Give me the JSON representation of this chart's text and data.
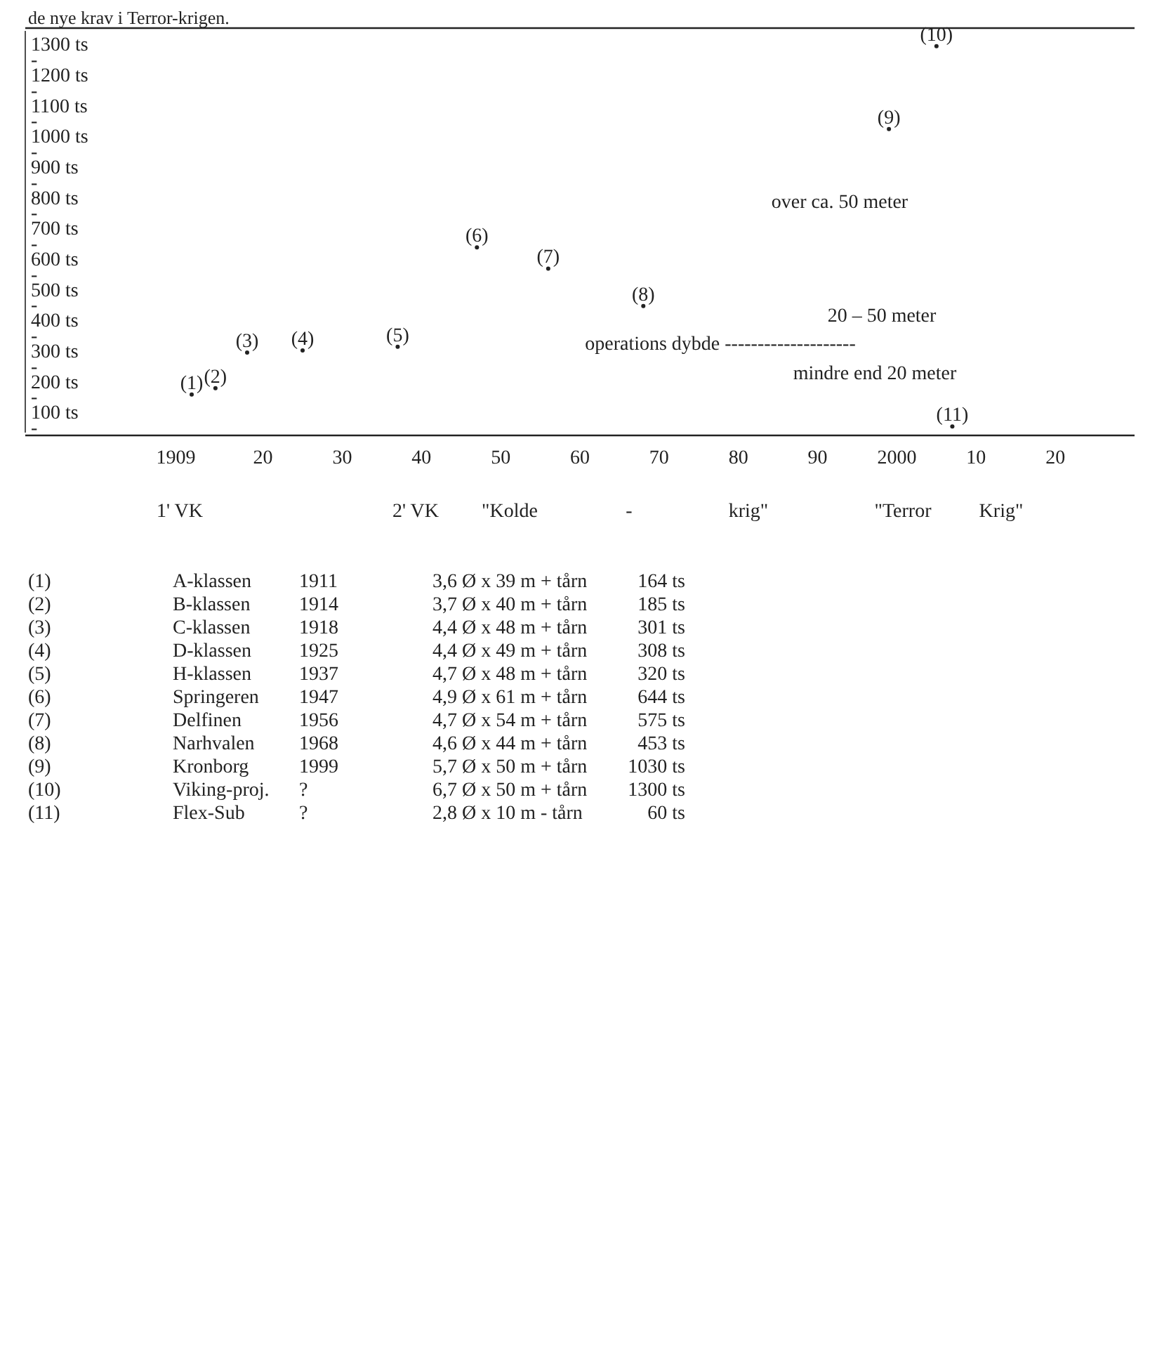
{
  "chart_data": {
    "type": "scatter",
    "title": "de nye krav i Terror-krigen.",
    "series": [
      {
        "name": "(1)",
        "x": [
          1911
        ],
        "values": [
          164
        ],
        "color": "#222222"
      },
      {
        "name": "(2)",
        "x": [
          1914
        ],
        "values": [
          185
        ],
        "color": "#222222"
      },
      {
        "name": "(3)",
        "x": [
          1918
        ],
        "values": [
          301
        ],
        "color": "#222222"
      },
      {
        "name": "(4)",
        "x": [
          1925
        ],
        "values": [
          308
        ],
        "color": "#222222"
      },
      {
        "name": "(5)",
        "x": [
          1937
        ],
        "values": [
          320
        ],
        "color": "#222222"
      },
      {
        "name": "(6)",
        "x": [
          1947
        ],
        "values": [
          644
        ],
        "color": "#222222"
      },
      {
        "name": "(7)",
        "x": [
          1956
        ],
        "values": [
          575
        ],
        "color": "#222222"
      },
      {
        "name": "(8)",
        "x": [
          1968
        ],
        "values": [
          453
        ],
        "color": "#222222"
      },
      {
        "name": "(9)",
        "x": [
          1999
        ],
        "values": [
          1030
        ],
        "color": "#222222"
      },
      {
        "name": "(10)",
        "x": [
          2005
        ],
        "values": [
          1300
        ],
        "color": "#222222"
      },
      {
        "name": "(11)",
        "x": [
          2007
        ],
        "values": [
          60
        ],
        "color": "#222222"
      }
    ],
    "marker": "circle",
    "xlim": [
      1890,
      2030
    ],
    "xticks": [
      1909,
      {
        "value": 1920,
        "label": "20"
      },
      {
        "value": 1930,
        "label": "30"
      },
      {
        "value": 1940,
        "label": "40"
      },
      {
        "value": 1950,
        "label": "50"
      },
      {
        "value": 1960,
        "label": "60"
      },
      {
        "value": 1970,
        "label": "70"
      },
      {
        "value": 1980,
        "label": "80"
      },
      {
        "value": 1990,
        "label": "90"
      },
      2000,
      {
        "value": 2010,
        "label": "10"
      },
      {
        "value": 2020,
        "label": "20"
      }
    ],
    "ylim": [
      40,
      1350
    ],
    "yticks": [
      {
        "value": 50,
        "label": "-"
      },
      {
        "value": 100,
        "label": "100 ts"
      },
      {
        "value": 150,
        "label": "-"
      },
      {
        "value": 200,
        "label": "200 ts"
      },
      {
        "value": 250,
        "label": "-"
      },
      {
        "value": 300,
        "label": "300 ts"
      },
      {
        "value": 350,
        "label": "-"
      },
      {
        "value": 400,
        "label": "400 ts"
      },
      {
        "value": 450,
        "label": "-"
      },
      {
        "value": 500,
        "label": "500 ts"
      },
      {
        "value": 550,
        "label": "-"
      },
      {
        "value": 600,
        "label": "600 ts"
      },
      {
        "value": 650,
        "label": "-"
      },
      {
        "value": 700,
        "label": "700 ts"
      },
      {
        "value": 750,
        "label": "-"
      },
      {
        "value": 800,
        "label": "800 ts"
      },
      {
        "value": 850,
        "label": "-"
      },
      {
        "value": 900,
        "label": "900 ts"
      },
      {
        "value": 950,
        "label": "-"
      },
      {
        "value": 1000,
        "label": "1000 ts"
      },
      {
        "value": 1050,
        "label": "-"
      },
      {
        "value": 1100,
        "label": "1100 ts"
      },
      {
        "value": 1150,
        "label": "-"
      },
      {
        "value": 1200,
        "label": "1200 ts"
      },
      {
        "value": 1250,
        "label": "-"
      },
      {
        "value": 1300,
        "label": "1300 ts"
      }
    ],
    "annotations": [
      "over ca. 50 meter",
      "20 – 50 meter",
      "operations dybde --------------------",
      "mindre end 20 meter",
      "1' VK",
      "2' VK",
      "\"Kolde",
      "-",
      "krig\"",
      "\"Terror",
      "Krig\"",
      "(1)\tA-klassen\t1911\t3,6 Ø x 39 m + tårn\t164 ts",
      "(2)\tB-klassen\t1914\t3,7 Ø x 40 m + tårn\t185 ts",
      "(3)\tC-klassen\t1918\t4,4 Ø x 48 m + tårn\t301 ts",
      "(4)\tD-klassen\t1925\t4,4 Ø x 49 m + tårn\t308 ts",
      "(5)\tH-klassen\t1937\t4,7 Ø x 48 m + tårn\t320 ts",
      "(6)\tSpringeren\t1947\t4,9 Ø x 61 m + tårn\t644 ts",
      "(7)\tDelfinen\t1956\t4,7 Ø x 54 m + tårn\t575 ts",
      "(8)\tNarhvalen\t1968\t4,6 Ø x 44 m + tårn\t453 ts",
      "(9)\tKronborg\t1999\t5,7 Ø x 50 m + tårn\t1030 ts",
      "(10)\tViking-proj.\t?\t6,7 Ø x 50 m + tårn\t1300 ts",
      "(11)\tFlex-Sub\t?\t2,8 Ø x 10 m - tårn\t60 ts"
    ]
  }
}
